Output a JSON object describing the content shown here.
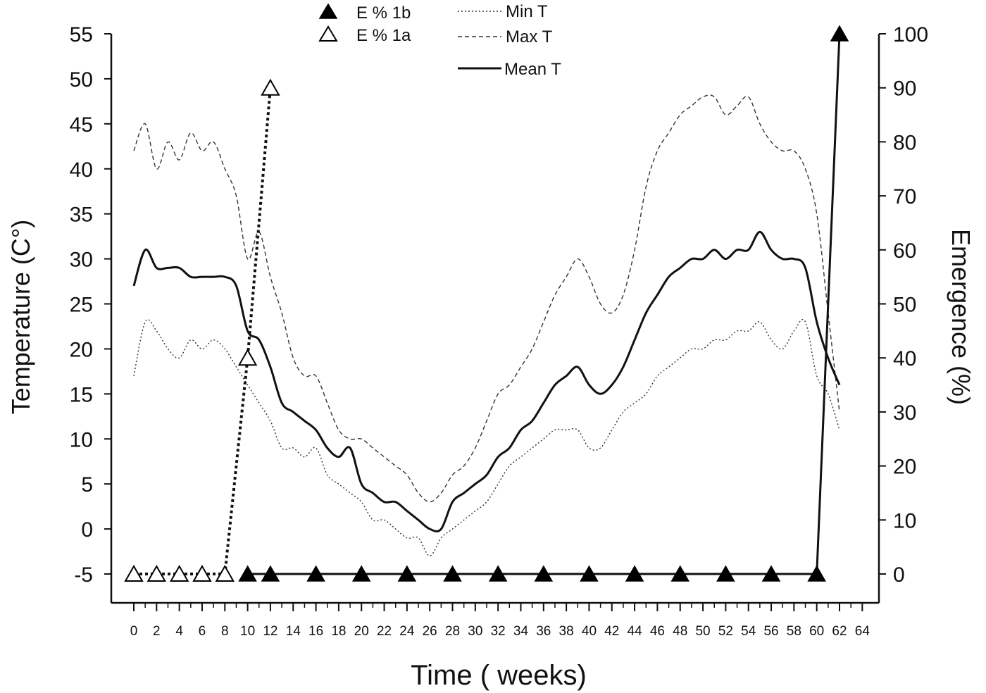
{
  "chart_data": {
    "type": "line",
    "xlabel": "Time ( weeks)",
    "ylabel_left": "Temperature (C°)",
    "ylabel_right": "Emergence (%)",
    "xlim": [
      -2,
      65
    ],
    "ylim_left": [
      -8,
      55
    ],
    "ylim_right": [
      -5.5,
      100
    ],
    "x_ticks": [
      0,
      2,
      4,
      6,
      8,
      10,
      12,
      14,
      16,
      18,
      20,
      22,
      24,
      26,
      28,
      30,
      32,
      34,
      36,
      38,
      40,
      42,
      44,
      46,
      48,
      50,
      52,
      54,
      56,
      58,
      60,
      62,
      64
    ],
    "y_ticks_left": [
      -5,
      0,
      5,
      10,
      15,
      20,
      25,
      30,
      35,
      40,
      45,
      50,
      55
    ],
    "y_ticks_right": [
      0,
      10,
      20,
      30,
      40,
      50,
      60,
      70,
      80,
      90,
      100
    ],
    "grid": false,
    "legend_position": "top-center",
    "legend": {
      "e1b": "E % 1b",
      "e1a": "E % 1a",
      "min_t": "Min T",
      "max_t": "Max T",
      "mean_t": "Mean T"
    },
    "temperature_series": [
      {
        "name": "Max T",
        "key": "max_t",
        "style": "dashed",
        "x": [
          0,
          1,
          2,
          3,
          4,
          5,
          6,
          7,
          8,
          9,
          10,
          11,
          12,
          13,
          14,
          15,
          16,
          17,
          18,
          19,
          20,
          21,
          22,
          23,
          24,
          25,
          26,
          27,
          28,
          29,
          30,
          31,
          32,
          33,
          34,
          35,
          36,
          37,
          38,
          39,
          40,
          41,
          42,
          43,
          44,
          45,
          46,
          47,
          48,
          49,
          50,
          51,
          52,
          53,
          54,
          55,
          56,
          57,
          58,
          59,
          60,
          61,
          62
        ],
        "y": [
          42,
          45,
          40,
          43,
          41,
          44,
          42,
          43,
          40,
          37,
          30,
          33,
          28,
          24,
          19,
          17,
          17,
          14,
          11,
          10,
          10,
          9,
          8,
          7,
          6,
          4,
          3,
          4,
          6,
          7,
          9,
          12,
          15,
          16,
          18,
          20,
          23,
          26,
          28,
          30,
          28,
          25,
          24,
          26,
          31,
          38,
          42,
          44,
          46,
          47,
          48,
          48,
          46,
          47,
          48,
          45,
          43,
          42,
          42,
          40,
          35,
          24,
          13
        ]
      },
      {
        "name": "Min T",
        "key": "min_t",
        "style": "dotted",
        "x": [
          0,
          1,
          2,
          3,
          4,
          5,
          6,
          7,
          8,
          9,
          10,
          11,
          12,
          13,
          14,
          15,
          16,
          17,
          18,
          19,
          20,
          21,
          22,
          23,
          24,
          25,
          26,
          27,
          28,
          29,
          30,
          31,
          32,
          33,
          34,
          35,
          36,
          37,
          38,
          39,
          40,
          41,
          42,
          43,
          44,
          45,
          46,
          47,
          48,
          49,
          50,
          51,
          52,
          53,
          54,
          55,
          56,
          57,
          58,
          59,
          60,
          61,
          62
        ],
        "y": [
          17,
          23,
          22,
          20,
          19,
          21,
          20,
          21,
          20,
          18,
          16,
          14,
          12,
          9,
          9,
          8,
          9,
          6,
          5,
          4,
          3,
          1,
          1,
          0,
          -1,
          -1,
          -3,
          -1,
          0,
          1,
          2,
          3,
          5,
          7,
          8,
          9,
          10,
          11,
          11,
          11,
          9,
          9,
          11,
          13,
          14,
          15,
          17,
          18,
          19,
          20,
          20,
          21,
          21,
          22,
          22,
          23,
          21,
          20,
          22,
          23,
          17,
          15,
          11
        ]
      },
      {
        "name": "Mean T",
        "key": "mean_t",
        "style": "solid",
        "x": [
          0,
          1,
          2,
          3,
          4,
          5,
          6,
          7,
          8,
          9,
          10,
          11,
          12,
          13,
          14,
          15,
          16,
          17,
          18,
          19,
          20,
          21,
          22,
          23,
          24,
          25,
          26,
          27,
          28,
          29,
          30,
          31,
          32,
          33,
          34,
          35,
          36,
          37,
          38,
          39,
          40,
          41,
          42,
          43,
          44,
          45,
          46,
          47,
          48,
          49,
          50,
          51,
          52,
          53,
          54,
          55,
          56,
          57,
          58,
          59,
          60,
          61,
          62
        ],
        "y": [
          27,
          31,
          29,
          29,
          29,
          28,
          28,
          28,
          28,
          27,
          22,
          21,
          18,
          14,
          13,
          12,
          11,
          9,
          8,
          9,
          5,
          4,
          3,
          3,
          2,
          1,
          0,
          0,
          3,
          4,
          5,
          6,
          8,
          9,
          11,
          12,
          14,
          16,
          17,
          18,
          16,
          15,
          16,
          18,
          21,
          24,
          26,
          28,
          29,
          30,
          30,
          31,
          30,
          31,
          31,
          33,
          31,
          30,
          30,
          29,
          23,
          19,
          16
        ]
      }
    ],
    "emergence_series": [
      {
        "name": "E % 1a",
        "key": "e1a",
        "marker": "triangle-open",
        "line": "dotted",
        "x": [
          0,
          2,
          4,
          6,
          8,
          10,
          12
        ],
        "y": [
          0,
          0,
          0,
          0,
          0,
          40,
          90
        ]
      },
      {
        "name": "E % 1b",
        "key": "e1b",
        "marker": "triangle-filled",
        "line": "solid",
        "x": [
          10,
          12,
          16,
          20,
          24,
          28,
          32,
          36,
          40,
          44,
          48,
          52,
          56,
          60,
          62
        ],
        "y": [
          0,
          0,
          0,
          0,
          0,
          0,
          0,
          0,
          0,
          0,
          0,
          0,
          0,
          0,
          100
        ]
      }
    ]
  }
}
